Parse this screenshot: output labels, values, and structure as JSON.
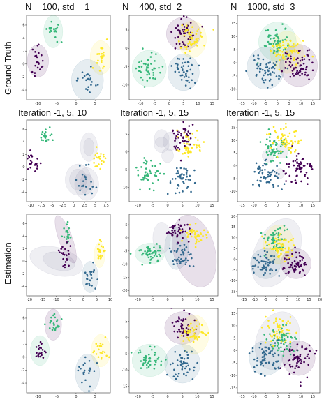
{
  "headers": {
    "col1": "N = 100, std = 1",
    "col2": "N = 400, std=2",
    "col3": "N = 1000, std=3",
    "row2_col1": "Iteration -1, 5, 10",
    "row2_col2": "Iteration -1, 5, 15",
    "row2_col3": "Iteration -1, 5, 15"
  },
  "side_labels": {
    "top": "Ground Truth",
    "middle": "Estimation"
  },
  "colors": {
    "purple": "#440154",
    "blue": "#31688e",
    "teal": "#35b779",
    "yellow": "#fde725",
    "gmm_fill": "#7a7a9a"
  },
  "chart_data": [
    {
      "id": "r1c1",
      "type": "scatter",
      "x_ticks": [
        -10,
        -5,
        0,
        5
      ],
      "y_ticks": [
        -4,
        -2,
        0,
        2,
        4,
        6
      ],
      "xlim": [
        -13,
        9
      ],
      "ylim": [
        -5.5,
        7.5
      ],
      "clusters": [
        {
          "color": "teal",
          "center": [
            -6,
            5
          ],
          "spread": 0.9
        },
        {
          "color": "purple",
          "center": [
            -10,
            0.5
          ],
          "spread": 0.9
        },
        {
          "color": "yellow",
          "center": [
            6.5,
            1
          ],
          "spread": 0.9
        },
        {
          "color": "blue",
          "center": [
            3,
            -2.5
          ],
          "spread": 1.2
        }
      ],
      "ellipses": [
        {
          "center": [
            -6,
            5
          ],
          "rx": 2.5,
          "ry": 2.5,
          "color": "teal"
        },
        {
          "center": [
            -10,
            0.5
          ],
          "rx": 2.8,
          "ry": 2.5,
          "color": "purple"
        },
        {
          "center": [
            6.5,
            1
          ],
          "rx": 2.8,
          "ry": 2.6,
          "color": "yellow"
        },
        {
          "center": [
            3,
            -2.5
          ],
          "rx": 4.2,
          "ry": 3.2,
          "color": "blue"
        }
      ]
    },
    {
      "id": "r1c2",
      "type": "scatter",
      "x_ticks": [
        -10,
        -5,
        0,
        5,
        10,
        15
      ],
      "y_ticks": [
        -10,
        -5,
        0,
        5
      ],
      "xlim": [
        -14,
        17
      ],
      "ylim": [
        -14,
        9
      ],
      "clusters": [
        {
          "color": "purple",
          "center": [
            5,
            4
          ],
          "spread": 2
        },
        {
          "color": "yellow",
          "center": [
            8,
            2.5
          ],
          "spread": 2
        },
        {
          "color": "teal",
          "center": [
            -7,
            -5.5
          ],
          "spread": 2.2
        },
        {
          "color": "blue",
          "center": [
            5,
            -6.5
          ],
          "spread": 2
        }
      ],
      "ellipses": [
        {
          "center": [
            5,
            4
          ],
          "rx": 6,
          "ry": 4.5,
          "color": "purple"
        },
        {
          "center": [
            8,
            2.5
          ],
          "rx": 5,
          "ry": 5,
          "color": "yellow"
        },
        {
          "center": [
            -7,
            -5.5
          ],
          "rx": 6,
          "ry": 5,
          "color": "teal"
        },
        {
          "center": [
            5,
            -6.5
          ],
          "rx": 5.5,
          "ry": 5,
          "color": "blue"
        }
      ]
    },
    {
      "id": "r1c3",
      "type": "scatter",
      "x_ticks": [
        -15,
        -10,
        -5,
        0,
        5,
        10,
        15
      ],
      "y_ticks": [
        -10,
        -5,
        0,
        5,
        10,
        15
      ],
      "xlim": [
        -17,
        18
      ],
      "ylim": [
        -14,
        18
      ],
      "clusters": [
        {
          "color": "teal",
          "center": [
            0,
            8
          ],
          "spread": 3
        },
        {
          "color": "yellow",
          "center": [
            4,
            4
          ],
          "spread": 3
        },
        {
          "color": "purple",
          "center": [
            9,
            -1
          ],
          "spread": 3
        },
        {
          "color": "blue",
          "center": [
            -5,
            -2
          ],
          "spread": 3
        }
      ],
      "ellipses": [
        {
          "center": [
            0,
            8
          ],
          "rx": 8,
          "ry": 7.5,
          "color": "teal"
        },
        {
          "center": [
            4,
            4
          ],
          "rx": 7,
          "ry": 8,
          "color": "yellow"
        },
        {
          "center": [
            9,
            -1
          ],
          "rx": 8,
          "ry": 8,
          "color": "purple"
        },
        {
          "center": [
            -5,
            -2
          ],
          "rx": 8,
          "ry": 8,
          "color": "blue"
        }
      ]
    },
    {
      "id": "r2c1",
      "type": "scatter",
      "x_ticks": [
        -10.0,
        -7.5,
        -5.0,
        -2.5,
        0.0,
        2.5,
        5.0,
        7.5
      ],
      "y_ticks": [
        -4,
        -2,
        0,
        2,
        4,
        6
      ],
      "xlim": [
        -11,
        8.5
      ],
      "ylim": [
        -5.5,
        7.5
      ],
      "clusters": [
        {
          "color": "teal",
          "center": [
            -6.5,
            5
          ],
          "spread": 0.7
        },
        {
          "color": "purple",
          "center": [
            -9.5,
            1
          ],
          "spread": 0.8
        },
        {
          "color": "yellow",
          "center": [
            6.2,
            1.2
          ],
          "spread": 0.8
        },
        {
          "color": "blue",
          "center": [
            3,
            -2.5
          ],
          "spread": 1.1
        }
      ],
      "ellipses": [
        {
          "center": [
            3.5,
            3.2
          ],
          "rx": 2,
          "ry": 2.3,
          "color": "gmm_fill"
        },
        {
          "center": [
            3.5,
            3.2
          ],
          "rx": 1.2,
          "ry": 1.4,
          "color": "gmm_fill"
        },
        {
          "center": [
            1,
            -2
          ],
          "rx": 3,
          "ry": 2.5,
          "color": "gmm_fill"
        },
        {
          "center": [
            1,
            -2
          ],
          "rx": 2,
          "ry": 1.7,
          "color": "gmm_fill"
        },
        {
          "center": [
            3,
            -2.7
          ],
          "rx": 2.8,
          "ry": 2.6,
          "color": "gmm_fill"
        },
        {
          "center": [
            3,
            -2.7
          ],
          "rx": 1.6,
          "ry": 1.6,
          "color": "gmm_fill"
        }
      ]
    },
    {
      "id": "r2c2",
      "type": "scatter",
      "x_ticks": [
        -10,
        -5,
        0,
        5,
        10,
        15
      ],
      "y_ticks": [
        -10,
        -5,
        0,
        5
      ],
      "xlim": [
        -13,
        17
      ],
      "ylim": [
        -14,
        9
      ],
      "clusters": [
        {
          "color": "purple",
          "center": [
            5,
            4
          ],
          "spread": 2
        },
        {
          "color": "yellow",
          "center": [
            8,
            1.5
          ],
          "spread": 2
        },
        {
          "color": "teal",
          "center": [
            -6,
            -6
          ],
          "spread": 2.2
        },
        {
          "color": "blue",
          "center": [
            5,
            -7.5
          ],
          "spread": 2
        }
      ],
      "ellipses": [
        {
          "center": [
            -2,
            3.8
          ],
          "rx": 2.5,
          "ry": 2.5,
          "color": "gmm_fill"
        },
        {
          "center": [
            -2,
            2
          ],
          "rx": 2.5,
          "ry": 2.2,
          "color": "gmm_fill"
        },
        {
          "center": [
            1,
            3
          ],
          "rx": 2.6,
          "ry": 2.6,
          "color": "gmm_fill"
        },
        {
          "center": [
            0,
            -1
          ],
          "rx": 2,
          "ry": 2,
          "color": "gmm_fill"
        }
      ]
    },
    {
      "id": "r2c3",
      "type": "scatter",
      "x_ticks": [
        -15,
        -10,
        -5,
        0,
        5,
        10,
        15
      ],
      "y_ticks": [
        -10,
        -5,
        0,
        5,
        10,
        15
      ],
      "xlim": [
        -17,
        18
      ],
      "ylim": [
        -14,
        18
      ],
      "clusters": [
        {
          "color": "teal",
          "center": [
            -1,
            7
          ],
          "spread": 3
        },
        {
          "color": "yellow",
          "center": [
            3,
            10
          ],
          "spread": 3
        },
        {
          "color": "purple",
          "center": [
            9,
            -1
          ],
          "spread": 3
        },
        {
          "color": "blue",
          "center": [
            -5,
            -3
          ],
          "spread": 3
        }
      ],
      "ellipses": [
        {
          "center": [
            -4,
            4
          ],
          "rx": 2.5,
          "ry": 2.5,
          "color": "gmm_fill"
        },
        {
          "center": [
            2,
            6
          ],
          "rx": 2.5,
          "ry": 3,
          "color": "gmm_fill"
        },
        {
          "center": [
            1,
            -3
          ],
          "rx": 2,
          "ry": 2,
          "color": "gmm_fill"
        }
      ]
    },
    {
      "id": "r3c1",
      "type": "scatter",
      "x_ticks": [
        -20,
        -15,
        -10,
        -5,
        0,
        5,
        10
      ],
      "y_ticks": [
        -4,
        -2,
        0,
        2,
        4,
        6
      ],
      "xlim": [
        -21,
        10
      ],
      "ylim": [
        -5.5,
        7.5
      ],
      "clusters": [
        {
          "color": "teal",
          "center": [
            -6,
            4.5
          ],
          "spread": 0.8
        },
        {
          "color": "purple",
          "center": [
            -7,
            1
          ],
          "spread": 1
        },
        {
          "color": "yellow",
          "center": [
            6.5,
            1.2
          ],
          "spread": 0.8
        },
        {
          "color": "blue",
          "center": [
            2.5,
            -2.5
          ],
          "spread": 1.1
        }
      ],
      "ellipses": [
        {
          "center": [
            -10,
            0
          ],
          "rx": 10,
          "ry": 2.2,
          "angle": -15,
          "color": "gmm_fill"
        },
        {
          "center": [
            -9,
            0
          ],
          "rx": 6,
          "ry": 1.4,
          "angle": -15,
          "color": "gmm_fill"
        },
        {
          "center": [
            -6.5,
            3.5
          ],
          "rx": 2.5,
          "ry": 4,
          "angle": 20,
          "color": "purple"
        },
        {
          "center": [
            6,
            1
          ],
          "rx": 2,
          "ry": 2,
          "color": "yellow"
        },
        {
          "center": [
            2.5,
            -2.5
          ],
          "rx": 3,
          "ry": 2.5,
          "color": "blue"
        }
      ]
    },
    {
      "id": "r3c2",
      "type": "scatter",
      "x_ticks": [
        -10,
        -5,
        0,
        5,
        10,
        15
      ],
      "y_ticks": [
        -20,
        -15,
        -10,
        -5,
        0,
        5
      ],
      "xlim": [
        -13,
        17
      ],
      "ylim": [
        -22,
        9
      ],
      "clusters": [
        {
          "color": "purple",
          "center": [
            4,
            3
          ],
          "spread": 2
        },
        {
          "color": "yellow",
          "center": [
            9,
            1
          ],
          "spread": 2
        },
        {
          "color": "teal",
          "center": [
            -6,
            -6
          ],
          "spread": 2
        },
        {
          "color": "blue",
          "center": [
            5,
            -7
          ],
          "spread": 2.2
        }
      ],
      "ellipses": [
        {
          "center": [
            9,
            -5
          ],
          "rx": 7,
          "ry": 14,
          "angle": 15,
          "color": "purple"
        },
        {
          "center": [
            3,
            -4
          ],
          "rx": 4,
          "ry": 8,
          "color": "blue"
        },
        {
          "center": [
            -6,
            -6
          ],
          "rx": 5,
          "ry": 4,
          "color": "teal"
        },
        {
          "center": [
            -2,
            0
          ],
          "rx": 3,
          "ry": 6,
          "color": "gmm_fill"
        }
      ]
    },
    {
      "id": "r3c3",
      "type": "scatter",
      "x_ticks": [
        -15,
        -10,
        -5,
        0,
        5,
        10,
        15,
        20
      ],
      "y_ticks": [
        -15,
        -10,
        -5,
        0,
        5,
        10,
        15,
        20
      ],
      "xlim": [
        -18,
        20
      ],
      "ylim": [
        -17,
        21
      ],
      "clusters": [
        {
          "color": "teal",
          "center": [
            0,
            9
          ],
          "spread": 3
        },
        {
          "color": "yellow",
          "center": [
            2,
            5
          ],
          "spread": 3
        },
        {
          "color": "purple",
          "center": [
            9,
            -2
          ],
          "spread": 3
        },
        {
          "color": "blue",
          "center": [
            -5,
            -2
          ],
          "spread": 3
        }
      ],
      "ellipses": [
        {
          "center": [
            0,
            3
          ],
          "rx": 10,
          "ry": 17,
          "angle": -25,
          "color": "gmm_fill"
        },
        {
          "center": [
            1,
            7
          ],
          "rx": 7,
          "ry": 9,
          "color": "yellow"
        },
        {
          "center": [
            -5,
            -2
          ],
          "rx": 7,
          "ry": 7,
          "color": "blue"
        },
        {
          "center": [
            9,
            -2
          ],
          "rx": 7,
          "ry": 7,
          "color": "purple"
        }
      ]
    },
    {
      "id": "r4c1",
      "type": "scatter",
      "x_ticks": [
        -10,
        -5,
        0,
        5
      ],
      "y_ticks": [
        -4,
        -2,
        0,
        2,
        4,
        6
      ],
      "xlim": [
        -13,
        9
      ],
      "ylim": [
        -5.5,
        7.5
      ],
      "clusters": [
        {
          "color": "teal",
          "center": [
            -6,
            5
          ],
          "spread": 0.8
        },
        {
          "color": "purple",
          "center": [
            -9.5,
            1
          ],
          "spread": 0.8
        },
        {
          "color": "yellow",
          "center": [
            6.5,
            1
          ],
          "spread": 0.9
        },
        {
          "color": "blue",
          "center": [
            3,
            -2.5
          ],
          "spread": 1.1
        }
      ],
      "ellipses": [
        {
          "center": [
            -6,
            5
          ],
          "rx": 2.2,
          "ry": 2.4,
          "color": "purple"
        },
        {
          "center": [
            -9.5,
            1
          ],
          "rx": 2.5,
          "ry": 2.3,
          "color": "teal"
        },
        {
          "center": [
            6.5,
            1
          ],
          "rx": 2.5,
          "ry": 2.5,
          "color": "yellow"
        },
        {
          "center": [
            3,
            -2.5
          ],
          "rx": 3.2,
          "ry": 3,
          "color": "blue"
        }
      ]
    },
    {
      "id": "r4c2",
      "type": "scatter",
      "x_ticks": [
        -10,
        -5,
        0,
        5,
        10,
        15
      ],
      "y_ticks": [
        -15,
        -10,
        -5,
        0,
        5
      ],
      "xlim": [
        -13,
        17
      ],
      "ylim": [
        -17,
        9
      ],
      "clusters": [
        {
          "color": "purple",
          "center": [
            5,
            3
          ],
          "spread": 2
        },
        {
          "color": "yellow",
          "center": [
            9,
            1
          ],
          "spread": 2
        },
        {
          "color": "teal",
          "center": [
            -6,
            -7
          ],
          "spread": 2
        },
        {
          "color": "blue",
          "center": [
            5,
            -8
          ],
          "spread": 2.2
        }
      ],
      "ellipses": [
        {
          "center": [
            5,
            3
          ],
          "rx": 6,
          "ry": 5,
          "color": "purple"
        },
        {
          "center": [
            9,
            1
          ],
          "rx": 5,
          "ry": 6,
          "color": "yellow"
        },
        {
          "center": [
            -6,
            -7
          ],
          "rx": 6,
          "ry": 5,
          "color": "teal"
        },
        {
          "center": [
            5,
            -8
          ],
          "rx": 6,
          "ry": 6,
          "color": "blue"
        }
      ]
    },
    {
      "id": "r4c3",
      "type": "scatter",
      "x_ticks": [
        -15,
        -10,
        -5,
        0,
        5,
        10,
        15
      ],
      "y_ticks": [
        -15,
        -10,
        -5,
        0,
        5,
        10,
        15
      ],
      "xlim": [
        -17,
        18
      ],
      "ylim": [
        -17,
        17
      ],
      "clusters": [
        {
          "color": "yellow",
          "center": [
            0,
            8
          ],
          "spread": 3
        },
        {
          "color": "teal",
          "center": [
            2,
            4
          ],
          "spread": 3
        },
        {
          "color": "purple",
          "center": [
            9,
            -3
          ],
          "spread": 3
        },
        {
          "color": "blue",
          "center": [
            -5,
            -3
          ],
          "spread": 3
        }
      ],
      "ellipses": [
        {
          "center": [
            0,
            4
          ],
          "rx": 9,
          "ry": 12,
          "angle": -20,
          "color": "gmm_fill"
        },
        {
          "center": [
            -5,
            -3
          ],
          "rx": 7,
          "ry": 7,
          "color": "blue"
        },
        {
          "center": [
            9,
            -3
          ],
          "rx": 7,
          "ry": 7,
          "color": "purple"
        }
      ]
    }
  ]
}
